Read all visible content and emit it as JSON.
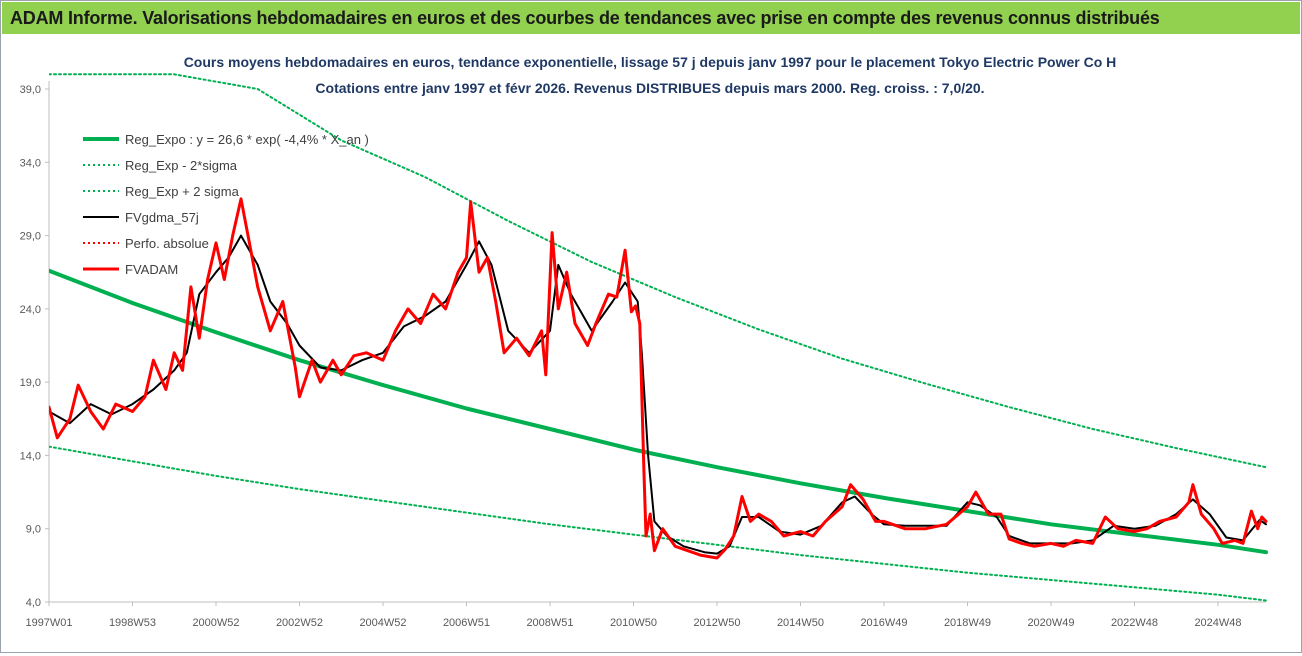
{
  "banner": {
    "title": "ADAM Informe. Valorisations hebdomadaires en euros et des courbes de tendances avec prise en compte des revenus connus distribués"
  },
  "colors": {
    "banner_bg": "#92d050",
    "regression": "#00b050",
    "bands": "#00b050",
    "fvgdma": "#000000",
    "perfo": "#ff0000",
    "fvadam": "#ff0000"
  },
  "chart_data": {
    "type": "line",
    "title": "Cours moyens hebdomadaires en euros, tendance exponentielle, lissage 57 j depuis janv 1997 pour le placement Tokyo Electric Power Co H",
    "subtitle": "Cotations entre janv 1997 et févr 2026. Revenus DISTRIBUES depuis mars 2000. Reg. croiss. : 7,0/20.",
    "xlabel": "",
    "ylabel": "",
    "ylim": [
      4.0,
      39.0
    ],
    "xlim": [
      1997.0,
      2026.15
    ],
    "grid": false,
    "legend_position": "top-left",
    "y_ticks": [
      "4,0",
      "9,0",
      "14,0",
      "19,0",
      "24,0",
      "29,0",
      "34,0",
      "39,0"
    ],
    "y_tick_values": [
      4,
      9,
      14,
      19,
      24,
      29,
      34,
      39
    ],
    "x_ticks": [
      "1997W01",
      "1998W53",
      "2000W52",
      "2002W52",
      "2004W52",
      "2006W51",
      "2008W51",
      "2010W50",
      "2012W50",
      "2014W50",
      "2016W49",
      "2018W49",
      "2020W49",
      "2022W48",
      "2024W48"
    ],
    "x_tick_values": [
      1997.0,
      1999.0,
      2001.0,
      2003.0,
      2005.0,
      2007.0,
      2009.0,
      2011.0,
      2013.0,
      2015.0,
      2017.0,
      2019.0,
      2021.0,
      2023.0,
      2025.0
    ],
    "series": [
      {
        "name": "Reg_Expo : y = 26,6 * exp( -4,4% * X_an )",
        "style": "solid-thick",
        "color": "#00b050",
        "points": [
          [
            1997.0,
            26.6
          ],
          [
            1999.0,
            24.4
          ],
          [
            2001.0,
            22.4
          ],
          [
            2003.0,
            20.5
          ],
          [
            2005.0,
            18.8
          ],
          [
            2007.0,
            17.2
          ],
          [
            2009.0,
            15.8
          ],
          [
            2011.0,
            14.4
          ],
          [
            2013.0,
            13.2
          ],
          [
            2015.0,
            12.1
          ],
          [
            2017.0,
            11.1
          ],
          [
            2019.0,
            10.2
          ],
          [
            2021.0,
            9.3
          ],
          [
            2023.0,
            8.6
          ],
          [
            2025.0,
            7.9
          ],
          [
            2026.15,
            7.4
          ]
        ]
      },
      {
        "name": "Reg_Exp - 2*sigma",
        "style": "dotted",
        "color": "#00b050",
        "points": [
          [
            1997.0,
            14.6
          ],
          [
            1999.0,
            13.6
          ],
          [
            2001.0,
            12.6
          ],
          [
            2003.0,
            11.7
          ],
          [
            2005.0,
            10.9
          ],
          [
            2007.0,
            10.1
          ],
          [
            2009.0,
            9.3
          ],
          [
            2011.0,
            8.6
          ],
          [
            2013.0,
            7.9
          ],
          [
            2015.0,
            7.2
          ],
          [
            2017.0,
            6.6
          ],
          [
            2019.0,
            6.0
          ],
          [
            2021.0,
            5.5
          ],
          [
            2023.0,
            5.0
          ],
          [
            2025.0,
            4.5
          ],
          [
            2026.15,
            4.1
          ]
        ]
      },
      {
        "name": "Reg_Exp + 2 sigma",
        "style": "dotted",
        "color": "#00b050",
        "points": [
          [
            1997.0,
            40.0
          ],
          [
            2000.0,
            40.0
          ],
          [
            2002.0,
            39.0
          ],
          [
            2004.0,
            35.5
          ],
          [
            2006.0,
            33.0
          ],
          [
            2008.0,
            30.0
          ],
          [
            2010.0,
            27.2
          ],
          [
            2012.0,
            24.8
          ],
          [
            2014.0,
            22.6
          ],
          [
            2016.0,
            20.6
          ],
          [
            2018.0,
            18.9
          ],
          [
            2020.0,
            17.3
          ],
          [
            2022.0,
            15.8
          ],
          [
            2024.0,
            14.5
          ],
          [
            2026.15,
            13.2
          ]
        ]
      },
      {
        "name": "FVgdma_57j",
        "style": "solid",
        "color": "#000000",
        "points": [
          [
            1997.0,
            17.0
          ],
          [
            1997.5,
            16.2
          ],
          [
            1998.0,
            17.5
          ],
          [
            1998.5,
            16.8
          ],
          [
            1999.0,
            17.5
          ],
          [
            1999.5,
            18.5
          ],
          [
            2000.0,
            19.8
          ],
          [
            2000.3,
            21.0
          ],
          [
            2000.6,
            25.0
          ],
          [
            2001.0,
            26.5
          ],
          [
            2001.3,
            27.5
          ],
          [
            2001.6,
            29.0
          ],
          [
            2002.0,
            27.0
          ],
          [
            2002.3,
            24.5
          ],
          [
            2002.7,
            23.0
          ],
          [
            2003.0,
            21.5
          ],
          [
            2003.5,
            20.0
          ],
          [
            2004.0,
            19.8
          ],
          [
            2004.5,
            20.5
          ],
          [
            2005.0,
            21.0
          ],
          [
            2005.5,
            22.8
          ],
          [
            2006.0,
            23.5
          ],
          [
            2006.5,
            24.5
          ],
          [
            2007.0,
            27.0
          ],
          [
            2007.3,
            28.6
          ],
          [
            2007.6,
            27.0
          ],
          [
            2008.0,
            22.5
          ],
          [
            2008.5,
            21.0
          ],
          [
            2009.0,
            22.5
          ],
          [
            2009.2,
            27.0
          ],
          [
            2009.5,
            25.0
          ],
          [
            2010.0,
            22.5
          ],
          [
            2010.5,
            24.5
          ],
          [
            2010.8,
            25.8
          ],
          [
            2011.1,
            24.5
          ],
          [
            2011.2,
            21.0
          ],
          [
            2011.35,
            14.0
          ],
          [
            2011.5,
            9.5
          ],
          [
            2011.8,
            8.5
          ],
          [
            2012.2,
            7.8
          ],
          [
            2012.7,
            7.4
          ],
          [
            2013.0,
            7.3
          ],
          [
            2013.3,
            7.8
          ],
          [
            2013.6,
            9.8
          ],
          [
            2014.0,
            9.8
          ],
          [
            2014.5,
            8.8
          ],
          [
            2015.0,
            8.6
          ],
          [
            2015.5,
            9.2
          ],
          [
            2016.0,
            10.8
          ],
          [
            2016.3,
            11.2
          ],
          [
            2016.7,
            10.0
          ],
          [
            2017.0,
            9.3
          ],
          [
            2017.5,
            9.2
          ],
          [
            2018.0,
            9.2
          ],
          [
            2018.5,
            9.2
          ],
          [
            2019.0,
            10.8
          ],
          [
            2019.3,
            10.6
          ],
          [
            2019.7,
            9.8
          ],
          [
            2020.0,
            8.5
          ],
          [
            2020.5,
            8.0
          ],
          [
            2021.0,
            8.0
          ],
          [
            2021.5,
            8.0
          ],
          [
            2022.0,
            8.2
          ],
          [
            2022.5,
            9.2
          ],
          [
            2023.0,
            9.0
          ],
          [
            2023.5,
            9.2
          ],
          [
            2024.0,
            10.0
          ],
          [
            2024.4,
            11.0
          ],
          [
            2024.8,
            10.0
          ],
          [
            2025.2,
            8.4
          ],
          [
            2025.6,
            8.2
          ],
          [
            2026.0,
            9.6
          ],
          [
            2026.15,
            9.3
          ]
        ]
      },
      {
        "name": "Perfo. absolue",
        "style": "dotted",
        "color": "#ff0000",
        "points": []
      },
      {
        "name": "FVADAM",
        "style": "solid-thick",
        "color": "#ff0000",
        "points": [
          [
            1997.0,
            17.3
          ],
          [
            1997.2,
            15.2
          ],
          [
            1997.5,
            16.5
          ],
          [
            1997.7,
            18.8
          ],
          [
            1998.0,
            17.0
          ],
          [
            1998.3,
            15.8
          ],
          [
            1998.6,
            17.5
          ],
          [
            1999.0,
            17.0
          ],
          [
            1999.3,
            18.0
          ],
          [
            1999.5,
            20.5
          ],
          [
            1999.8,
            18.5
          ],
          [
            2000.0,
            21.0
          ],
          [
            2000.2,
            19.8
          ],
          [
            2000.4,
            25.5
          ],
          [
            2000.6,
            22.0
          ],
          [
            2000.8,
            26.0
          ],
          [
            2001.0,
            28.5
          ],
          [
            2001.2,
            26.0
          ],
          [
            2001.4,
            29.0
          ],
          [
            2001.6,
            31.5
          ],
          [
            2001.8,
            28.5
          ],
          [
            2002.0,
            25.5
          ],
          [
            2002.3,
            22.5
          ],
          [
            2002.6,
            24.5
          ],
          [
            2002.9,
            20.0
          ],
          [
            2003.0,
            18.0
          ],
          [
            2003.3,
            20.5
          ],
          [
            2003.5,
            19.0
          ],
          [
            2003.8,
            20.5
          ],
          [
            2004.0,
            19.5
          ],
          [
            2004.3,
            20.8
          ],
          [
            2004.6,
            21.0
          ],
          [
            2005.0,
            20.5
          ],
          [
            2005.3,
            22.5
          ],
          [
            2005.6,
            24.0
          ],
          [
            2005.9,
            23.0
          ],
          [
            2006.2,
            25.0
          ],
          [
            2006.5,
            24.0
          ],
          [
            2006.8,
            26.5
          ],
          [
            2007.0,
            27.5
          ],
          [
            2007.1,
            31.3
          ],
          [
            2007.3,
            26.5
          ],
          [
            2007.5,
            27.5
          ],
          [
            2007.7,
            24.5
          ],
          [
            2007.9,
            21.0
          ],
          [
            2008.2,
            22.0
          ],
          [
            2008.5,
            20.8
          ],
          [
            2008.8,
            22.5
          ],
          [
            2008.9,
            19.5
          ],
          [
            2009.05,
            29.2
          ],
          [
            2009.2,
            24.0
          ],
          [
            2009.4,
            26.5
          ],
          [
            2009.6,
            23.0
          ],
          [
            2009.9,
            21.5
          ],
          [
            2010.1,
            23.0
          ],
          [
            2010.4,
            25.0
          ],
          [
            2010.6,
            24.8
          ],
          [
            2010.8,
            28.0
          ],
          [
            2010.95,
            23.8
          ],
          [
            2011.05,
            24.2
          ],
          [
            2011.15,
            23.0
          ],
          [
            2011.25,
            13.0
          ],
          [
            2011.3,
            8.5
          ],
          [
            2011.4,
            10.0
          ],
          [
            2011.5,
            7.5
          ],
          [
            2011.7,
            9.0
          ],
          [
            2012.0,
            7.8
          ],
          [
            2012.3,
            7.5
          ],
          [
            2012.6,
            7.2
          ],
          [
            2013.0,
            7.0
          ],
          [
            2013.2,
            7.6
          ],
          [
            2013.4,
            8.5
          ],
          [
            2013.6,
            11.2
          ],
          [
            2013.8,
            9.5
          ],
          [
            2014.0,
            10.0
          ],
          [
            2014.3,
            9.5
          ],
          [
            2014.6,
            8.5
          ],
          [
            2015.0,
            8.8
          ],
          [
            2015.3,
            8.5
          ],
          [
            2015.6,
            9.5
          ],
          [
            2016.0,
            10.5
          ],
          [
            2016.2,
            12.0
          ],
          [
            2016.5,
            11.0
          ],
          [
            2016.8,
            9.5
          ],
          [
            2017.0,
            9.5
          ],
          [
            2017.5,
            9.0
          ],
          [
            2018.0,
            9.0
          ],
          [
            2018.5,
            9.3
          ],
          [
            2019.0,
            10.5
          ],
          [
            2019.2,
            11.5
          ],
          [
            2019.5,
            10.0
          ],
          [
            2019.8,
            10.0
          ],
          [
            2020.0,
            8.3
          ],
          [
            2020.3,
            8.0
          ],
          [
            2020.6,
            7.8
          ],
          [
            2021.0,
            8.0
          ],
          [
            2021.3,
            7.8
          ],
          [
            2021.6,
            8.2
          ],
          [
            2022.0,
            8.0
          ],
          [
            2022.3,
            9.8
          ],
          [
            2022.6,
            9.0
          ],
          [
            2023.0,
            8.8
          ],
          [
            2023.3,
            9.0
          ],
          [
            2023.6,
            9.5
          ],
          [
            2024.0,
            9.8
          ],
          [
            2024.3,
            10.8
          ],
          [
            2024.4,
            12.0
          ],
          [
            2024.6,
            10.0
          ],
          [
            2024.9,
            9.0
          ],
          [
            2025.1,
            8.0
          ],
          [
            2025.4,
            8.2
          ],
          [
            2025.6,
            8.0
          ],
          [
            2025.8,
            10.2
          ],
          [
            2025.95,
            9.0
          ],
          [
            2026.05,
            9.8
          ],
          [
            2026.15,
            9.5
          ]
        ]
      }
    ]
  }
}
